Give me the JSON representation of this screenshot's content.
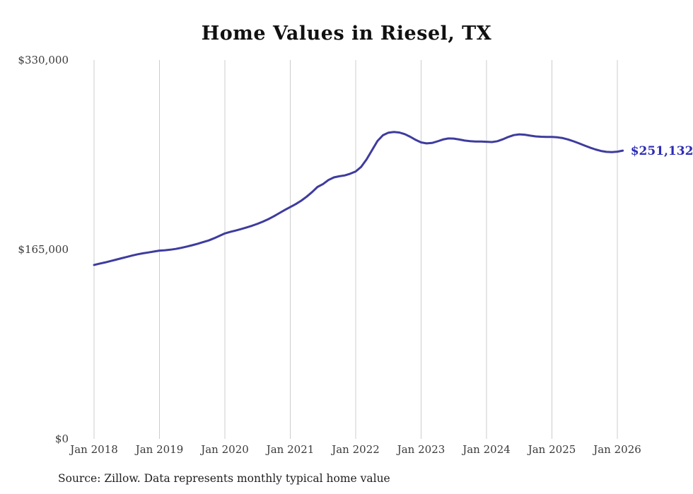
{
  "chart_data": {
    "type": "line",
    "title": "Home Values in Riesel, TX",
    "x_start": "2018-01",
    "x_end": "2026-02",
    "frequency": "monthly",
    "x_ticks": [
      "Jan 2018",
      "Jan 2019",
      "Jan 2020",
      "Jan 2021",
      "Jan 2022",
      "Jan 2023",
      "Jan 2024",
      "Jan 2025",
      "Jan 2026"
    ],
    "y_ticks": [
      {
        "label": "$0",
        "value": 0
      },
      {
        "label": "$165,000",
        "value": 165000
      },
      {
        "label": "$330,000",
        "value": 330000
      }
    ],
    "y_axis": {
      "min": 0,
      "max": 330000
    },
    "values": [
      151500,
      152600,
      153700,
      154900,
      156100,
      157300,
      158500,
      159700,
      160800,
      161700,
      162400,
      163200,
      164000,
      164300,
      164800,
      165500,
      166400,
      167500,
      168700,
      170000,
      171400,
      172800,
      174700,
      176800,
      179000,
      180300,
      181500,
      182800,
      184200,
      185700,
      187400,
      189300,
      191500,
      194000,
      196700,
      199400,
      202000,
      204500,
      207500,
      211000,
      215000,
      219500,
      222000,
      225500,
      227800,
      228800,
      229500,
      231000,
      233000,
      237000,
      243500,
      251500,
      259500,
      264500,
      266800,
      267300,
      266900,
      265500,
      263200,
      260500,
      258300,
      257400,
      257800,
      259200,
      260800,
      261700,
      261600,
      260800,
      259900,
      259300,
      259000,
      259000,
      258800,
      258600,
      259300,
      261000,
      263000,
      264600,
      265300,
      265000,
      264200,
      263500,
      263200,
      263000,
      263000,
      262700,
      262000,
      260800,
      259200,
      257400,
      255500,
      253700,
      252100,
      250800,
      250000,
      249800,
      250200,
      251132
    ],
    "current_value": 251132,
    "end_label": "$251,132",
    "legend": "none",
    "grid": "vertical-only",
    "colors": {
      "line": "#3e3c9e",
      "end_label": "#2d2bb5",
      "gridline": "#cccccc"
    }
  },
  "footer": {
    "source": "Source: Zillow. Data represents monthly typical home value"
  }
}
